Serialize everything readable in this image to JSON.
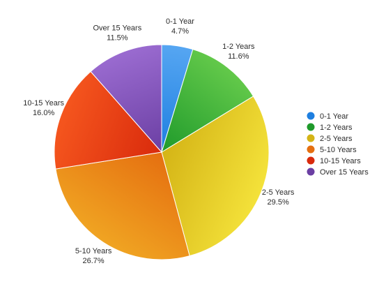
{
  "chart_data": {
    "type": "pie",
    "title": "",
    "start_angle_deg": 0,
    "direction": "clockwise",
    "legend_position": "right",
    "slices": [
      {
        "label": "0-1 Year",
        "value": 4.7,
        "value_label": "4.7%",
        "color": "#1e7fe0",
        "color_light": "#56a6f2"
      },
      {
        "label": "1-2 Years",
        "value": 11.6,
        "value_label": "11.6%",
        "color": "#1f9a2b",
        "color_light": "#63c94a"
      },
      {
        "label": "2-5 Years",
        "value": 29.5,
        "value_label": "29.5%",
        "color": "#d4b416",
        "color_light": "#f4e23a"
      },
      {
        "label": "5-10 Years",
        "value": 26.7,
        "value_label": "26.7%",
        "color": "#e56f10",
        "color_light": "#f0a422"
      },
      {
        "label": "10-15 Years",
        "value": 16.0,
        "value_label": "16.0%",
        "color": "#d92a0c",
        "color_light": "#f5561e"
      },
      {
        "label": "Over 15 Years",
        "value": 11.5,
        "value_label": "11.5%",
        "color": "#6b3fa3",
        "color_light": "#9a6bd0"
      }
    ]
  }
}
